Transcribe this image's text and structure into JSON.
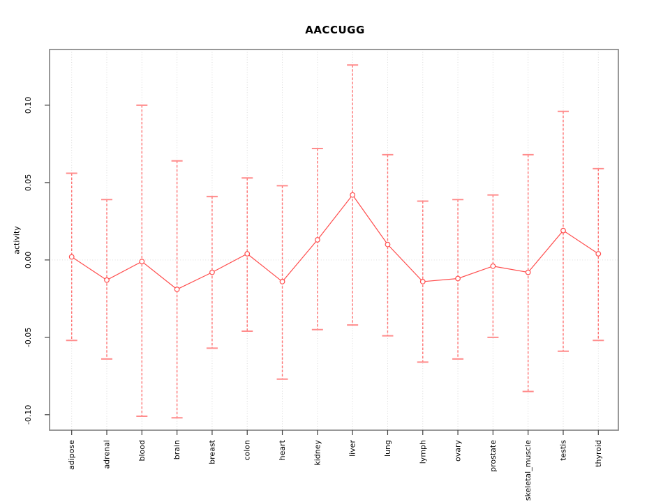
{
  "page": {
    "background": "#ffffff"
  },
  "chart_data": {
    "type": "line",
    "title": "AACCUGG",
    "ylabel": "activity",
    "xlabel": "",
    "categories": [
      "adipose",
      "adrenal",
      "blood",
      "brain",
      "breast",
      "colon",
      "heart",
      "kidney",
      "liver",
      "lung",
      "lymph",
      "ovary",
      "prostate",
      "skeletal_muscle",
      "testis",
      "thyroid"
    ],
    "series": [
      {
        "name": "activity",
        "marker": "open-circle",
        "values": [
          0.002,
          -0.013,
          -0.001,
          -0.019,
          -0.008,
          0.004,
          -0.014,
          0.013,
          0.042,
          0.01,
          -0.014,
          -0.012,
          -0.004,
          -0.008,
          0.019,
          0.004
        ],
        "error_upper": [
          0.056,
          0.039,
          0.1,
          0.064,
          0.041,
          0.053,
          0.048,
          0.072,
          0.126,
          0.068,
          0.038,
          0.039,
          0.042,
          0.068,
          0.096,
          0.059
        ],
        "error_lower": [
          -0.052,
          -0.064,
          -0.101,
          -0.102,
          -0.057,
          -0.046,
          -0.077,
          -0.045,
          -0.042,
          -0.049,
          -0.066,
          -0.064,
          -0.05,
          -0.085,
          -0.059,
          -0.052
        ]
      }
    ],
    "yticks": [
      {
        "value": -0.1,
        "label": "-0.10"
      },
      {
        "value": -0.05,
        "label": "-0.05"
      },
      {
        "value": 0.0,
        "label": "0.00"
      },
      {
        "value": 0.05,
        "label": "0.05"
      },
      {
        "value": 0.1,
        "label": "0.10"
      }
    ],
    "ylim": [
      -0.11,
      0.136
    ],
    "grid": {
      "vertical_at_categories": true,
      "zero_line": true,
      "style": "dotted"
    },
    "legend": "none",
    "colors": {
      "point": "#ff4d4d",
      "line": "#ff4d4d",
      "error_bar_line": "#ff7373",
      "error_bar_cap": "#ff8c8c",
      "grid": "#d9d9d9",
      "zero_line": "#dcdcdc",
      "axis_box": "#878787",
      "tick": "#404040",
      "text": "#000000"
    }
  }
}
